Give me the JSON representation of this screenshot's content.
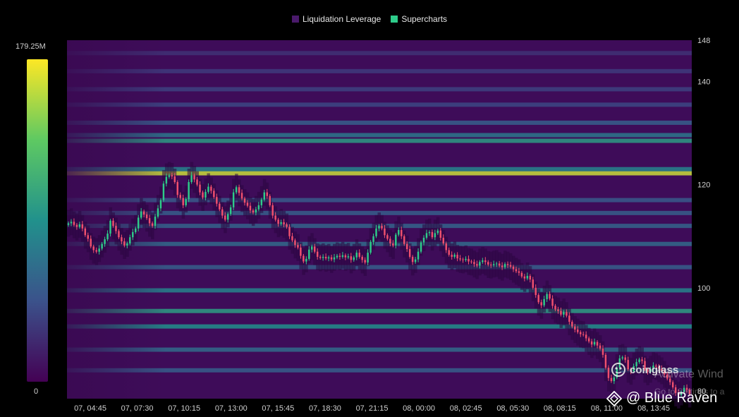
{
  "legend": {
    "items": [
      {
        "label": "Liquidation Leverage",
        "color": "#4a1a6b"
      },
      {
        "label": "Supercharts",
        "color": "#2ecc8a"
      }
    ]
  },
  "colorbar": {
    "max_label": "179.25M",
    "min_label": "0",
    "colors": [
      "#440154",
      "#3b528b",
      "#21918c",
      "#5ec962",
      "#fde725"
    ]
  },
  "branding": {
    "logo_text": "coinglass",
    "activate_text": "Activate Wind",
    "activate_sub": "Go to Settings to a",
    "overlay_text": "@ Blue Raven"
  },
  "chart_data": {
    "type": "heatmap",
    "title": "",
    "xlabel": "",
    "ylabel": "",
    "x_ticks": [
      "07, 04:45",
      "07, 07:30",
      "07, 10:15",
      "07, 13:00",
      "07, 15:45",
      "07, 18:30",
      "07, 21:15",
      "08, 00:00",
      "08, 02:45",
      "08, 05:30",
      "08, 08:15",
      "08, 11:00",
      "08, 13:45"
    ],
    "y_ticks": [
      80,
      100,
      120,
      140,
      148
    ],
    "ylim": [
      78.5,
      148
    ],
    "colorscale_range": [
      0,
      179.25
    ],
    "colorscale_unit": "M",
    "bands": [
      {
        "price": 122.2,
        "intensity": 0.92
      },
      {
        "price": 123.0,
        "intensity": 0.45
      },
      {
        "price": 128.5,
        "intensity": 0.55
      },
      {
        "price": 129.6,
        "intensity": 0.4
      },
      {
        "price": 132.0,
        "intensity": 0.3
      },
      {
        "price": 135.5,
        "intensity": 0.22
      },
      {
        "price": 138.5,
        "intensity": 0.2
      },
      {
        "price": 142.0,
        "intensity": 0.18
      },
      {
        "price": 145.5,
        "intensity": 0.15
      },
      {
        "price": 117.0,
        "intensity": 0.28
      },
      {
        "price": 114.5,
        "intensity": 0.3
      },
      {
        "price": 112.0,
        "intensity": 0.32
      },
      {
        "price": 108.5,
        "intensity": 0.35
      },
      {
        "price": 104.0,
        "intensity": 0.3
      },
      {
        "price": 99.5,
        "intensity": 0.45
      },
      {
        "price": 95.5,
        "intensity": 0.55
      },
      {
        "price": 92.5,
        "intensity": 0.5
      },
      {
        "price": 88.0,
        "intensity": 0.35
      },
      {
        "price": 84.0,
        "intensity": 0.3
      }
    ],
    "price_series": {
      "name": "Supercharts",
      "close": [
        112.5,
        112.8,
        112.2,
        111.8,
        112.3,
        111.5,
        110.2,
        109.5,
        108.0,
        107.3,
        107.0,
        107.6,
        108.5,
        109.4,
        110.5,
        113.0,
        112.0,
        111.0,
        109.8,
        109.0,
        108.2,
        108.6,
        109.8,
        110.8,
        111.5,
        113.6,
        114.8,
        114.2,
        113.5,
        112.5,
        112.0,
        113.8,
        115.4,
        117.0,
        120.2,
        121.5,
        121.8,
        121.6,
        120.5,
        118.0,
        117.4,
        116.0,
        117.2,
        120.5,
        121.8,
        121.0,
        120.0,
        118.5,
        117.5,
        118.6,
        119.6,
        118.8,
        117.6,
        116.3,
        115.2,
        114.0,
        113.2,
        114.3,
        115.6,
        118.5,
        119.5,
        118.4,
        117.3,
        116.5,
        115.9,
        115.0,
        114.6,
        115.2,
        116.0,
        117.1,
        118.5,
        117.8,
        116.0,
        114.0,
        113.2,
        112.4,
        112.7,
        112.3,
        111.8,
        110.0,
        109.2,
        108.3,
        107.8,
        106.2,
        105.1,
        105.6,
        107.4,
        108.0,
        107.0,
        106.0,
        105.8,
        106.0,
        105.7,
        105.9,
        105.5,
        105.9,
        106.2,
        106.0,
        106.3,
        105.9,
        106.1,
        105.4,
        105.9,
        106.8,
        106.0,
        105.4,
        104.9,
        106.8,
        108.9,
        110.0,
        111.5,
        112.0,
        111.5,
        110.2,
        109.5,
        108.6,
        108.2,
        110.3,
        111.2,
        110.0,
        108.5,
        107.5,
        106.0,
        105.0,
        105.5,
        107.0,
        108.8,
        109.7,
        110.6,
        110.8,
        109.8,
        110.6,
        111.1,
        109.7,
        108.6,
        107.3,
        106.4,
        106.0,
        106.4,
        105.7,
        105.5,
        105.4,
        105.6,
        105.1,
        105.0,
        104.6,
        104.3,
        105.0,
        105.3,
        105.0,
        104.5,
        104.4,
        104.6,
        104.7,
        104.3,
        104.0,
        104.6,
        104.4,
        104.1,
        103.6,
        103.2,
        102.9,
        102.2,
        101.8,
        102.3,
        101.6,
        100.0,
        98.6,
        97.2,
        96.6,
        97.8,
        98.8,
        97.9,
        96.5,
        95.8,
        95.5,
        94.8,
        95.3,
        94.6,
        93.4,
        92.5,
        91.9,
        91.4,
        91.0,
        90.9,
        90.2,
        89.6,
        89.0,
        89.5,
        88.8,
        88.2,
        87.0,
        84.5,
        82.5,
        81.9,
        82.6,
        84.5,
        86.3,
        86.5,
        86.0,
        84.2,
        83.8,
        84.8,
        85.6,
        86.1,
        85.8,
        84.2,
        83.7,
        84.2,
        84.9,
        84.7,
        84.3,
        83.9,
        83.2,
        82.4,
        81.7,
        80.7,
        79.6,
        79.2,
        79.8,
        80.6,
        80.2,
        79.4
      ]
    }
  }
}
